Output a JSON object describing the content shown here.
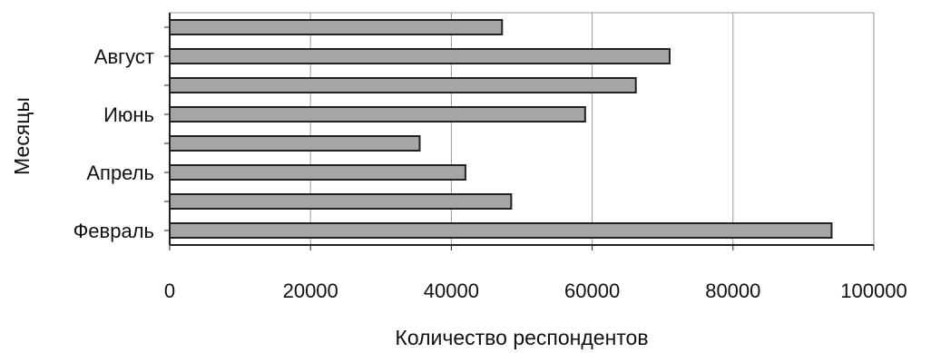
{
  "chart_data": {
    "type": "bar",
    "orientation": "horizontal",
    "title": "",
    "xlabel": "Количество респондентов",
    "ylabel": "Месяцы",
    "categories": [
      "Февраль",
      "",
      "Апрель",
      "",
      "Июнь",
      "",
      "Август",
      ""
    ],
    "values": [
      94000,
      48500,
      42000,
      35500,
      59000,
      66200,
      71000,
      47200
    ],
    "xlim": [
      0,
      100000
    ],
    "x_ticks": [
      "0",
      "20000",
      "40000",
      "60000",
      "80000",
      "100000"
    ],
    "grid": "vertical",
    "legend": "none",
    "bar_color": "#a6a6a6",
    "bar_edge_color": "#222222"
  }
}
